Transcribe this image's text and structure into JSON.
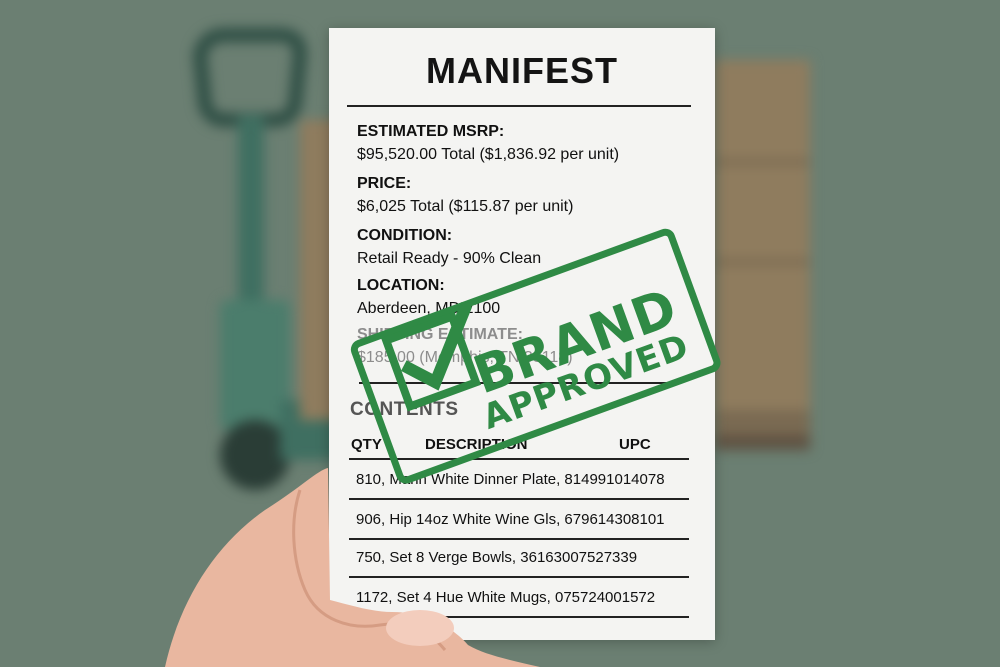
{
  "manifest": {
    "title": "MANIFEST",
    "estimated_msrp_label": "ESTIMATED MSRP:",
    "estimated_msrp_value": "$95,520.00 Total  ($1,836.92 per unit)",
    "price_label": "PRICE:",
    "price_value": "$6,025 Total ($115.87 per unit)",
    "condition_label": "CONDITION:",
    "condition_value": "Retail Ready - 90% Clean",
    "location_label": "LOCATION:",
    "location_value": "Aberdeen, MD 2100",
    "shipping_label": "SHIPPING ESTIMATE:",
    "shipping_value": "$185.00 (Memphis, TN 38118)",
    "contents_heading": "CONTENTS",
    "columns": [
      "QTY",
      "DESCRIPTION",
      "UPC"
    ],
    "rows": [
      "810, Marin White Dinner Plate, 814991014078",
      "906, Hip 14oz White Wine Gls, 679614308101",
      "750, Set 8 Verge Bowls, 36163007527339",
      "1172, Set 4 Hue White Mugs, 075724001572"
    ]
  },
  "stamp": {
    "line1": "BRAND",
    "line2": "APPROVED",
    "color": "#2f8a45"
  },
  "colors": {
    "background": "#6b7f72",
    "paper": "#f4f4f2"
  }
}
